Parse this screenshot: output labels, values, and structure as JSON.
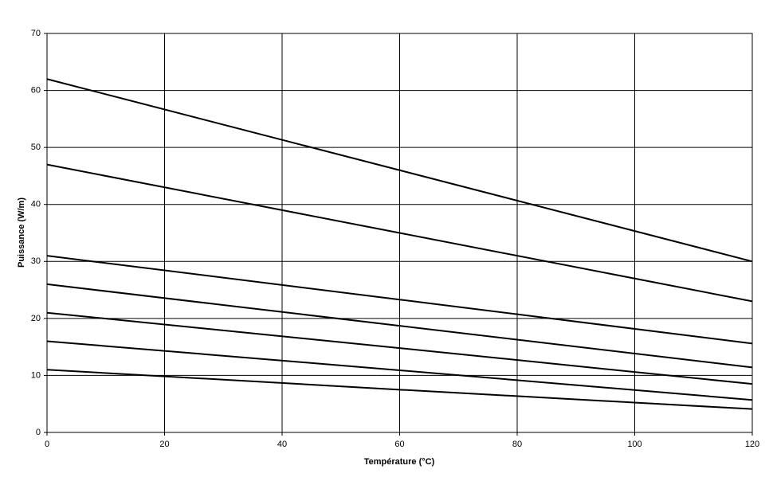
{
  "chart_data": {
    "type": "line",
    "x_label": "Température (°C)",
    "y_label": "Puissance (W/m)",
    "x": [
      0,
      60,
      120
    ],
    "series": [
      {
        "color": "#000000",
        "values": [
          62,
          46,
          30
        ]
      },
      {
        "color": "#000000",
        "values": [
          47,
          35,
          23
        ]
      },
      {
        "color": "#000000",
        "values": [
          31,
          23.3,
          15.6
        ]
      },
      {
        "color": "#000000",
        "values": [
          26,
          18.7,
          11.4
        ]
      },
      {
        "color": "#000000",
        "values": [
          21,
          14.8,
          8.5
        ]
      },
      {
        "color": "#000000",
        "values": [
          16,
          10.9,
          5.7
        ]
      },
      {
        "color": "#000000",
        "values": [
          11,
          7.5,
          4.1
        ]
      }
    ],
    "xlim": [
      0,
      120
    ],
    "xticks": [
      0,
      20,
      40,
      60,
      80,
      100,
      120
    ],
    "ylim": [
      0,
      70
    ],
    "yticks": [
      0,
      10,
      20,
      30,
      40,
      50,
      60,
      70
    ],
    "grid": true
  }
}
